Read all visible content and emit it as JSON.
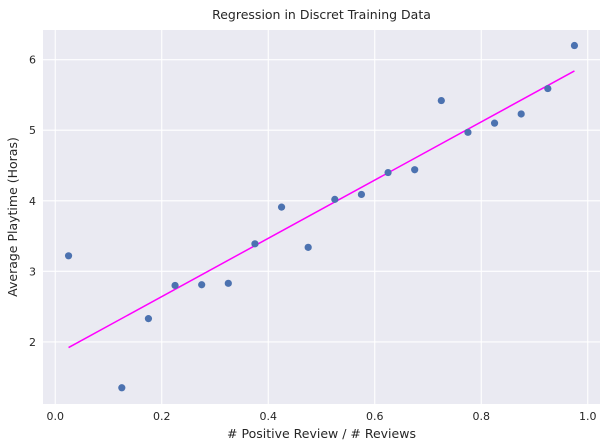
{
  "chart_data": {
    "type": "scatter",
    "title": "Regression in Discret Training Data",
    "xlabel": "# Positive Review / # Reviews",
    "ylabel": "Average Playtime (Horas)",
    "xlim": [
      -0.023,
      1.023
    ],
    "ylim": [
      1.12,
      6.42
    ],
    "xticks": [
      0.0,
      0.2,
      0.4,
      0.6,
      0.8,
      1.0
    ],
    "xtick_labels": [
      "0.0",
      "0.2",
      "0.4",
      "0.6",
      "0.8",
      "1.0"
    ],
    "yticks": [
      2,
      3,
      4,
      5,
      6
    ],
    "ytick_labels": [
      "2",
      "3",
      "4",
      "5",
      "6"
    ],
    "grid": true,
    "series": [
      {
        "kind": "points",
        "color": "#4c72b0",
        "x": [
          0.025,
          0.125,
          0.175,
          0.225,
          0.275,
          0.325,
          0.375,
          0.425,
          0.475,
          0.525,
          0.575,
          0.625,
          0.675,
          0.725,
          0.775,
          0.825,
          0.875,
          0.925,
          0.975
        ],
        "y": [
          3.22,
          1.35,
          2.33,
          2.8,
          2.81,
          2.83,
          3.39,
          3.91,
          3.34,
          4.02,
          4.09,
          4.4,
          4.44,
          5.42,
          4.97,
          5.1,
          5.23,
          5.59,
          6.2
        ]
      },
      {
        "kind": "regression-line",
        "color": "#ff00ff",
        "x": [
          0.025,
          0.975
        ],
        "y": [
          1.92,
          5.84
        ]
      }
    ],
    "colors": {
      "background": "#eaeaf2",
      "grid": "#ffffff",
      "text": "#262626"
    }
  }
}
